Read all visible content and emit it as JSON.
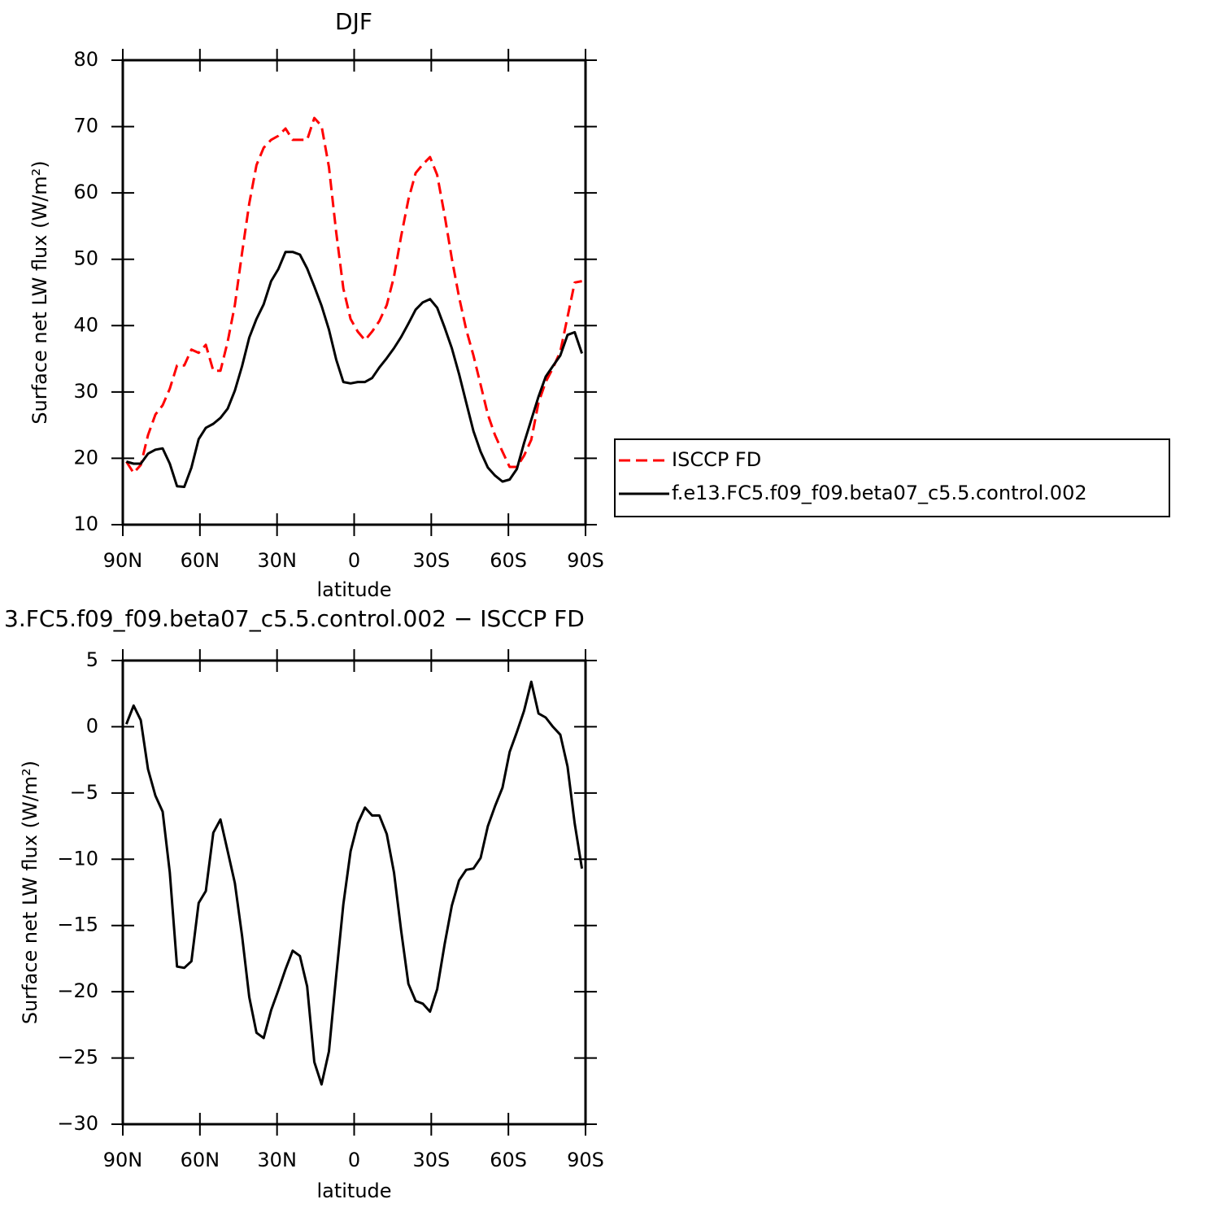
{
  "chart_data": [
    {
      "type": "line",
      "title": "DJF",
      "xlabel": "latitude",
      "ylabel": "Surface net LW flux (W/m²)",
      "x": [
        88.6,
        85.8,
        83.0,
        80.2,
        77.3,
        74.5,
        71.7,
        68.9,
        66.1,
        63.3,
        60.5,
        57.7,
        54.8,
        52.0,
        49.2,
        46.4,
        43.6,
        40.8,
        38.0,
        35.2,
        32.3,
        29.5,
        26.7,
        23.9,
        21.1,
        18.3,
        15.5,
        12.7,
        9.8,
        7.0,
        4.2,
        1.4,
        -1.4,
        -4.2,
        -7.0,
        -9.8,
        -12.7,
        -15.5,
        -18.3,
        -21.1,
        -23.9,
        -26.7,
        -29.5,
        -32.3,
        -35.2,
        -38.0,
        -40.8,
        -43.6,
        -46.4,
        -49.2,
        -52.0,
        -54.8,
        -57.7,
        -60.5,
        -63.3,
        -66.1,
        -68.9,
        -71.7,
        -74.5,
        -77.3,
        -80.2,
        -83.0,
        -85.8,
        -88.6
      ],
      "xlim": [
        90,
        -90
      ],
      "xticks": [
        {
          "value": 90,
          "label": "90N"
        },
        {
          "value": 60,
          "label": "60N"
        },
        {
          "value": 30,
          "label": "30N"
        },
        0,
        {
          "value": -30,
          "label": "30S"
        },
        {
          "value": -60,
          "label": "60S"
        },
        {
          "value": -90,
          "label": "90S"
        }
      ],
      "ylim": [
        10,
        80
      ],
      "yticks": [
        10,
        20,
        30,
        40,
        50,
        60,
        70,
        80
      ],
      "legend": "right",
      "series": [
        {
          "name": "ISCCP FD",
          "color": "#ff0000",
          "dash": "dashed",
          "values": [
            19.5,
            17.8,
            19.0,
            23.5,
            26.6,
            28.0,
            30.5,
            34.0,
            34.0,
            36.4,
            35.9,
            37.1,
            33.2,
            33.2,
            37.6,
            43.1,
            51.0,
            58.4,
            64.2,
            66.8,
            68.0,
            68.6,
            69.7,
            68.0,
            68.0,
            68.0,
            71.3,
            70.1,
            63.9,
            54.1,
            45.6,
            41.0,
            39.1,
            37.8,
            39.1,
            40.7,
            43.1,
            47.4,
            53.5,
            59.0,
            63.0,
            64.3,
            65.4,
            62.7,
            56.6,
            50.1,
            44.3,
            39.4,
            35.5,
            31.1,
            26.6,
            23.5,
            21.0,
            18.7,
            18.7,
            20.4,
            22.8,
            28.4,
            31.5,
            33.6,
            36.1,
            41.3,
            46.5,
            46.7
          ]
        },
        {
          "name": "f.e13.FC5.f09_f09.beta07_c5.5.control.002",
          "color": "#000000",
          "dash": "solid",
          "values": [
            19.5,
            19.2,
            19.2,
            20.7,
            21.3,
            21.5,
            19.2,
            15.8,
            15.7,
            18.6,
            22.9,
            24.6,
            25.2,
            26.1,
            27.5,
            30.2,
            33.9,
            38.2,
            41.0,
            43.2,
            46.7,
            48.5,
            51.1,
            51.1,
            50.7,
            48.6,
            45.9,
            43.0,
            39.4,
            34.9,
            31.5,
            31.3,
            31.5,
            31.5,
            32.1,
            33.7,
            35.1,
            36.6,
            38.3,
            40.3,
            42.4,
            43.5,
            44.0,
            42.7,
            39.7,
            36.6,
            32.7,
            28.4,
            24.1,
            21.0,
            18.6,
            17.4,
            16.5,
            16.8,
            18.4,
            22.3,
            25.8,
            29.3,
            32.3,
            33.9,
            35.5,
            38.6,
            39.0,
            35.8
          ]
        }
      ]
    },
    {
      "type": "line",
      "title": "3.FC5.f09_f09.beta07_c5.5.control.002 − ISCCP FD",
      "xlabel": "latitude",
      "ylabel": "Surface net LW flux (W/m²)",
      "x": [
        88.6,
        85.8,
        83.0,
        80.2,
        77.3,
        74.5,
        71.7,
        68.9,
        66.1,
        63.3,
        60.5,
        57.7,
        54.8,
        52.0,
        49.2,
        46.4,
        43.6,
        40.8,
        38.0,
        35.2,
        32.3,
        29.5,
        26.7,
        23.9,
        21.1,
        18.3,
        15.5,
        12.7,
        9.8,
        7.0,
        4.2,
        1.4,
        -1.4,
        -4.2,
        -7.0,
        -9.8,
        -12.7,
        -15.5,
        -18.3,
        -21.1,
        -23.9,
        -26.7,
        -29.5,
        -32.3,
        -35.2,
        -38.0,
        -40.8,
        -43.6,
        -46.4,
        -49.2,
        -52.0,
        -54.8,
        -57.7,
        -60.5,
        -63.3,
        -66.1,
        -68.9,
        -71.7,
        -74.5,
        -77.3,
        -80.2,
        -83.0,
        -85.8,
        -88.6
      ],
      "xlim": [
        90,
        -90
      ],
      "xticks": [
        {
          "value": 90,
          "label": "90N"
        },
        {
          "value": 60,
          "label": "60N"
        },
        {
          "value": 30,
          "label": "30N"
        },
        0,
        {
          "value": -30,
          "label": "30S"
        },
        {
          "value": -60,
          "label": "60S"
        },
        {
          "value": -90,
          "label": "90S"
        }
      ],
      "ylim": [
        -30,
        5
      ],
      "yticks": [
        {
          "value": -30,
          "label": "−30"
        },
        {
          "value": -25,
          "label": "−25"
        },
        {
          "value": -20,
          "label": "−20"
        },
        {
          "value": -15,
          "label": "−15"
        },
        {
          "value": -10,
          "label": "−10"
        },
        {
          "value": -5,
          "label": "−5"
        },
        0,
        5
      ],
      "series": [
        {
          "color": "#000000",
          "dash": "solid",
          "values": [
            0.2,
            1.6,
            0.5,
            -3.2,
            -5.2,
            -6.4,
            -11.0,
            -18.1,
            -18.2,
            -17.7,
            -13.3,
            -12.4,
            -8.0,
            -7.0,
            -9.4,
            -11.8,
            -15.8,
            -20.4,
            -23.1,
            -23.5,
            -21.4,
            -19.9,
            -18.3,
            -16.9,
            -17.3,
            -19.6,
            -25.3,
            -27.0,
            -24.5,
            -18.8,
            -13.4,
            -9.4,
            -7.3,
            -6.1,
            -6.7,
            -6.7,
            -8.1,
            -11.0,
            -15.4,
            -19.4,
            -20.7,
            -20.9,
            -21.5,
            -19.8,
            -16.4,
            -13.5,
            -11.6,
            -10.8,
            -10.7,
            -9.9,
            -7.5,
            -6.0,
            -4.6,
            -1.9,
            -0.4,
            1.2,
            3.4,
            1.0,
            0.7,
            0.0,
            -0.6,
            -3.0,
            -7.3,
            -10.7
          ]
        }
      ]
    }
  ]
}
